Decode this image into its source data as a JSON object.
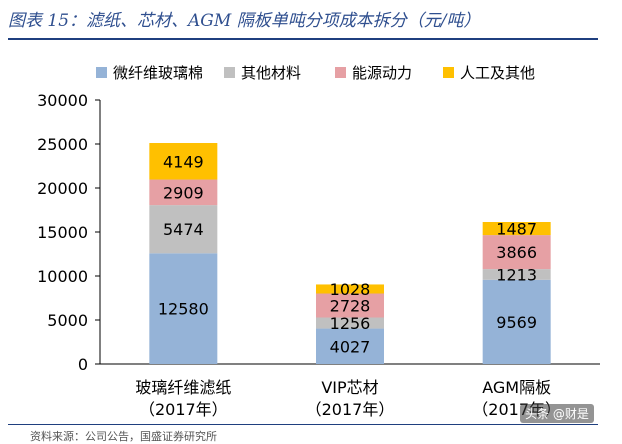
{
  "figure": {
    "title": "图表 15：滤纸、芯材、AGM 隔板单吨分项成本拆分（元/吨）",
    "source": "资料来源：公司公告，国盛证券研究所",
    "watermark": "头条 @财是"
  },
  "chart_data": {
    "type": "bar",
    "stacked": true,
    "categories": [
      "玻璃纤维滤纸（2017年）",
      "VIP芯材（2017年）",
      "AGM隔板（2017年）"
    ],
    "category_lines": [
      [
        "玻璃纤维滤纸",
        "（2017年）"
      ],
      [
        "VIP芯材",
        "（2017年）"
      ],
      [
        "AGM隔板",
        "（2017年）"
      ]
    ],
    "series": [
      {
        "name": "微纤维玻璃棉",
        "color": "#95b3d7",
        "values": [
          12580,
          4027,
          9569
        ]
      },
      {
        "name": "其他材料",
        "color": "#c0c0c0",
        "values": [
          5474,
          1256,
          1213
        ]
      },
      {
        "name": "能源动力",
        "color": "#e6a0a4",
        "values": [
          2909,
          2728,
          3866
        ]
      },
      {
        "name": "人工及其他",
        "color": "#ffc000",
        "values": [
          4149,
          1028,
          1487
        ]
      }
    ],
    "ylim": [
      0,
      30000
    ],
    "yticks": [
      0,
      5000,
      10000,
      15000,
      20000,
      25000,
      30000
    ],
    "grid": false,
    "legend": "top",
    "xlabel": "",
    "ylabel": ""
  }
}
